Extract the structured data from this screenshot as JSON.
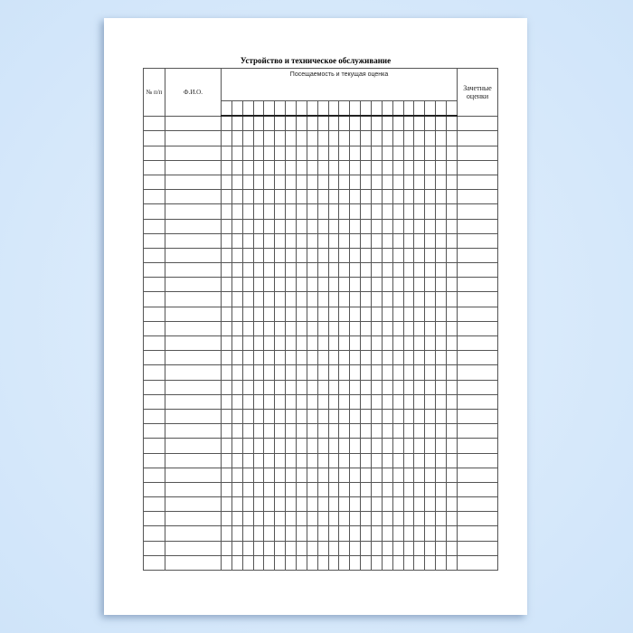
{
  "document": {
    "title": "Устройство и техническое обслуживание",
    "columns": {
      "number": "№ п/п",
      "name": "Ф.И.О.",
      "attendance": "Посещаемость и текущая оценка",
      "grades": "Зачетные оценки"
    },
    "attendance_column_count": 22,
    "row_count": 31
  }
}
